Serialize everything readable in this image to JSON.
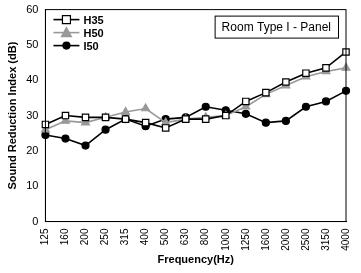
{
  "chart_data": {
    "type": "line",
    "title": "Room Type I - Panel",
    "x_label": "Frequency(Hz)",
    "y_label": "Sound Reduction Index (dB)",
    "categories": [
      "125",
      "160",
      "200",
      "250",
      "315",
      "400",
      "500",
      "630",
      "800",
      "1000",
      "1250",
      "1600",
      "2000",
      "2500",
      "3150",
      "4000"
    ],
    "series": [
      {
        "name": "H35",
        "color": "#000000",
        "marker": "square_open",
        "values": [
          27.5,
          30,
          29.5,
          29.5,
          29,
          28,
          26.5,
          29,
          29,
          30,
          34,
          36.5,
          39.5,
          42,
          43.5,
          48
        ]
      },
      {
        "name": "H50",
        "color": "#999999",
        "marker": "triangle",
        "values": [
          26,
          28.5,
          28,
          29.5,
          31,
          32,
          28,
          29,
          29.5,
          30,
          32.5,
          36,
          38.5,
          41,
          42.5,
          43.5
        ]
      },
      {
        "name": "I50",
        "color": "#000000",
        "marker": "circle",
        "values": [
          24.5,
          23.5,
          21.5,
          26,
          29,
          27,
          29,
          29.5,
          32.5,
          31.5,
          30.5,
          28,
          28.5,
          32.5,
          34,
          37
        ]
      }
    ],
    "ylim": [
      0,
      60
    ],
    "yticks": [
      0,
      10,
      20,
      30,
      40,
      50,
      60
    ],
    "grid": false,
    "legend": "upper left"
  }
}
